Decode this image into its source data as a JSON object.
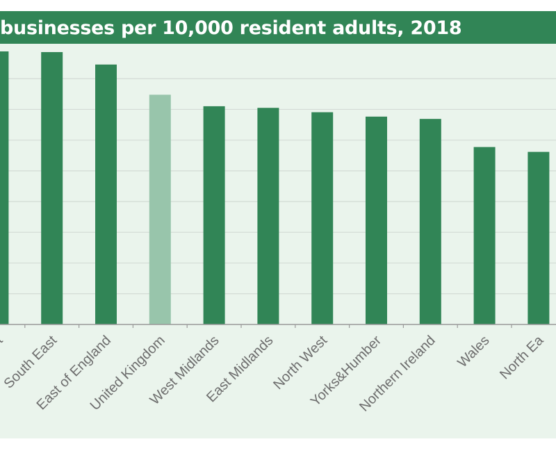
{
  "chart_data": {
    "type": "bar",
    "title": "businesses per 10,000 resident adults, 2018",
    "xlabel": "",
    "ylabel": "",
    "ylim": [
      0,
      1200
    ],
    "grid": true,
    "categories": [
      "West",
      "South East",
      "East of England",
      "United Kingdom",
      "West Midlands",
      "East Midlands",
      "North West",
      "Yorks&Humber",
      "Northern Ireland",
      "Wales",
      "North Ea"
    ],
    "values": [
      1185,
      1182,
      1128,
      997,
      947,
      940,
      921,
      902,
      892,
      770,
      749
    ],
    "highlight_category": "United Kingdom"
  },
  "colors": {
    "banner": "#318556",
    "bar": "#318556",
    "bar_highlight": "#98c5ab",
    "plot_background": "#eaf4ec",
    "gridline": "#d3dbd5",
    "axis": "#9a9a9a",
    "label": "#6d6d6d"
  }
}
